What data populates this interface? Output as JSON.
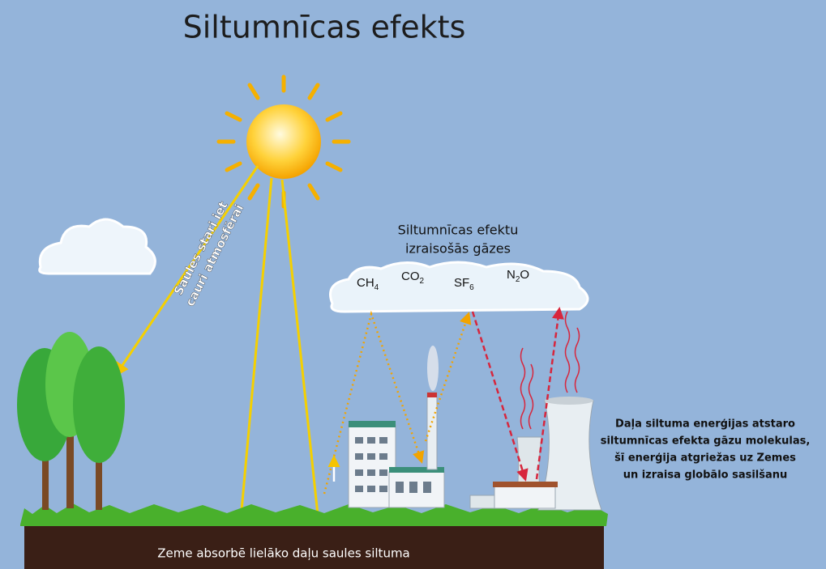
{
  "title": "Siltumnīcas efekts",
  "sun_label": {
    "lines": [
      "Saules stari iet",
      "cauri atmosfērai"
    ]
  },
  "gas_cloud": {
    "title_lines": [
      "Siltumnīcas efektu",
      "izraisošās gāzes"
    ],
    "gases": [
      {
        "formula": "CH",
        "subscript": "4"
      },
      {
        "formula": "CO",
        "subscript": "2"
      },
      {
        "formula": "SF",
        "subscript": "6"
      },
      {
        "formula": "N",
        "subscript": "2",
        "suffix": "O"
      }
    ]
  },
  "reflection_note": {
    "lines": [
      "Daļa siltuma enerģijas atstaro",
      "siltumnīcas efekta gāzu molekulas,",
      "šī enerģija atgriežas uz Zemes",
      "un izraisa globālo sasilšanu"
    ]
  },
  "ground_label": "Zeme absorbē lielāko daļu saules siltuma"
}
